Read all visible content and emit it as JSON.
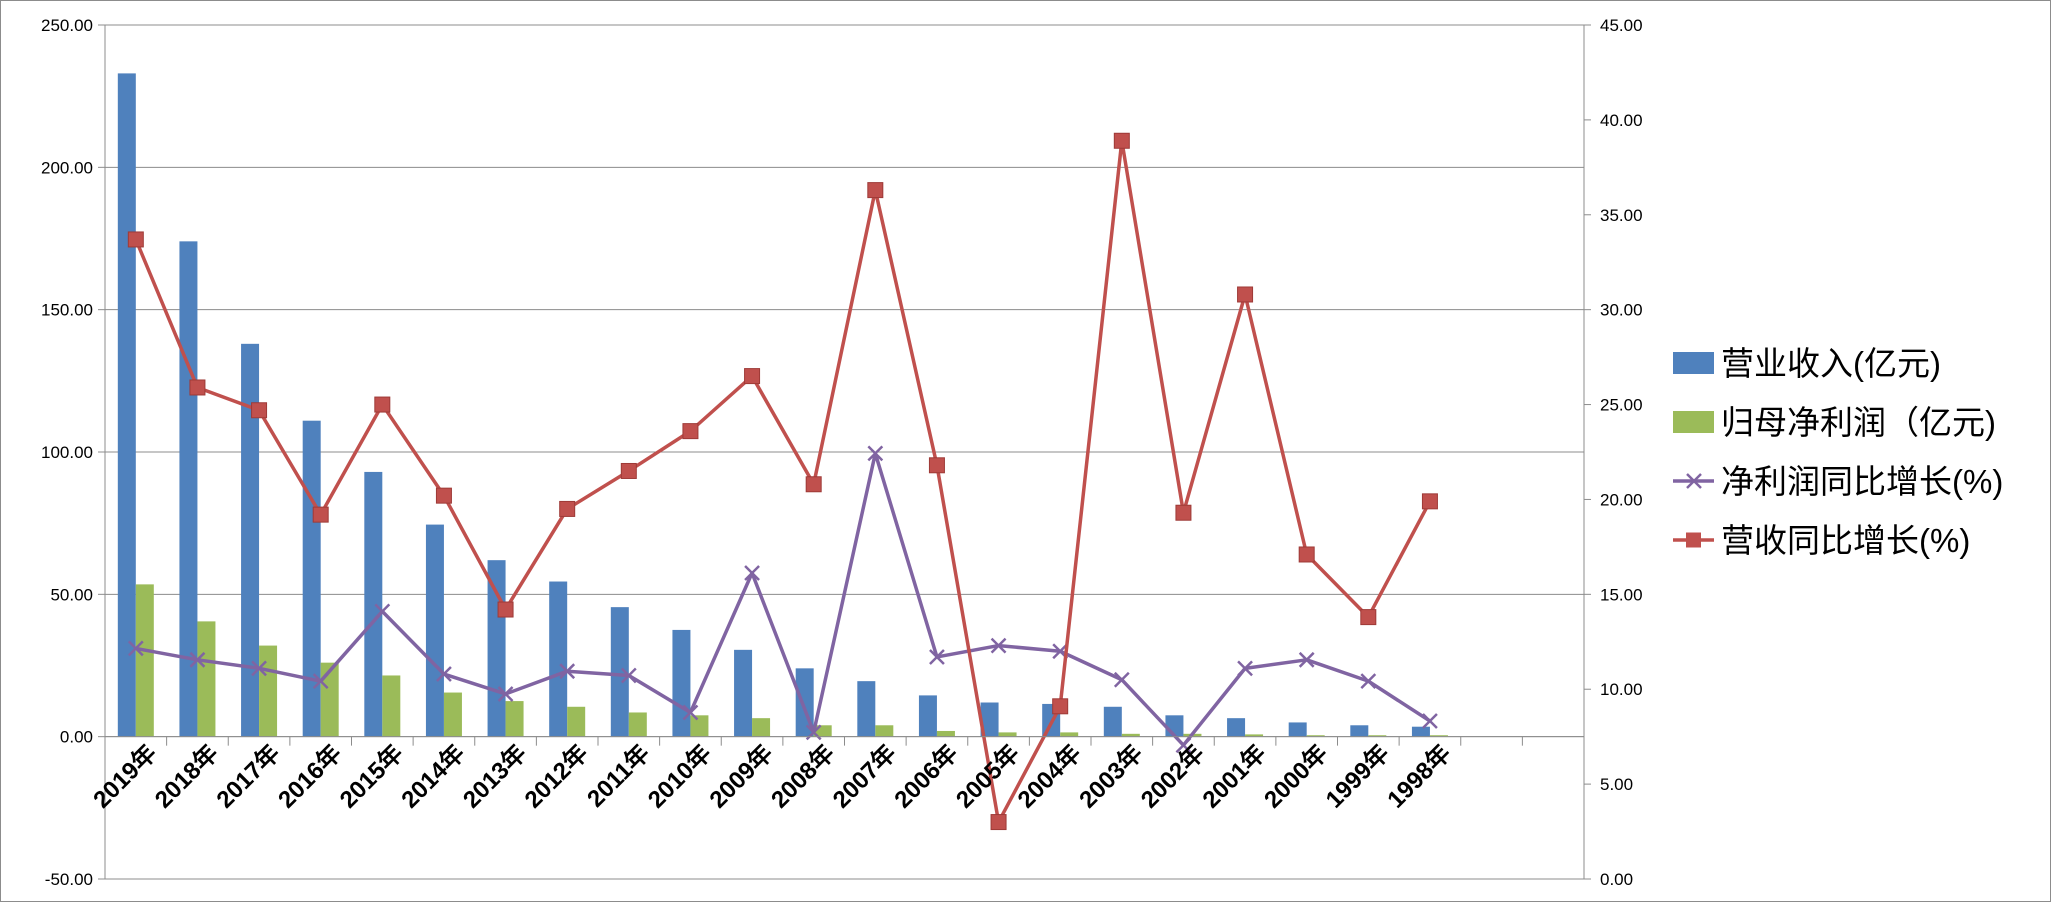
{
  "chart_data": {
    "type": "bar+line",
    "categories": [
      "2019年",
      "2018年",
      "2017年",
      "2016年",
      "2015年",
      "2014年",
      "2013年",
      "2012年",
      "2011年",
      "2010年",
      "2009年",
      "2008年",
      "2007年",
      "2006年",
      "2005年",
      "2004年",
      "2003年",
      "2002年",
      "2001年",
      "2000年",
      "1999年",
      "1998年"
    ],
    "left_axis": {
      "ylim": [
        -50,
        250
      ],
      "ticks": [
        "-50.00",
        "0.00",
        "50.00",
        "100.00",
        "150.00",
        "200.00",
        "250.00"
      ]
    },
    "right_axis": {
      "ylim": [
        0,
        45
      ],
      "ticks": [
        "0.00",
        "5.00",
        "10.00",
        "15.00",
        "20.00",
        "25.00",
        "30.00",
        "35.00",
        "40.00",
        "45.00"
      ]
    },
    "grid": true,
    "legend_position": "right",
    "series": [
      {
        "name": "营业收入(亿元)",
        "kind": "bar",
        "axis": "left",
        "color": "#4F81BD",
        "values": [
          233,
          174,
          138,
          111,
          93,
          74.5,
          62,
          54.5,
          45.5,
          37.5,
          30.5,
          24,
          19.5,
          14.5,
          12,
          11.5,
          10.5,
          7.5,
          6.5,
          5,
          4,
          3.5
        ]
      },
      {
        "name": "归母净利润（亿元)",
        "kind": "bar",
        "axis": "left",
        "color": "#9BBB59",
        "values": [
          53.5,
          40.5,
          32,
          26,
          21.5,
          15.5,
          12.5,
          10.5,
          8.5,
          7.5,
          6.5,
          4,
          4,
          2,
          1.5,
          1.5,
          1,
          1,
          0.8,
          0.5,
          0.5,
          0.5
        ]
      },
      {
        "name": "净利润同比增长(%)",
        "kind": "line",
        "axis": "left",
        "marker": "x",
        "color": "#8064A2",
        "values": [
          31,
          27,
          24,
          19.5,
          44,
          22,
          15,
          23,
          21.5,
          8.5,
          57.5,
          1.5,
          99.5,
          28,
          32,
          30,
          20,
          -3,
          24,
          27,
          19.5,
          5.5
        ]
      },
      {
        "name": "营收同比增长(%)",
        "kind": "line",
        "axis": "right",
        "marker": "square",
        "color": "#C0504D",
        "values": [
          33.7,
          25.9,
          24.7,
          19.2,
          25.0,
          20.2,
          14.2,
          19.5,
          21.5,
          23.6,
          26.5,
          20.8,
          36.3,
          21.8,
          3.0,
          9.1,
          38.9,
          19.3,
          30.8,
          17.1,
          13.8,
          19.9
        ]
      }
    ]
  }
}
